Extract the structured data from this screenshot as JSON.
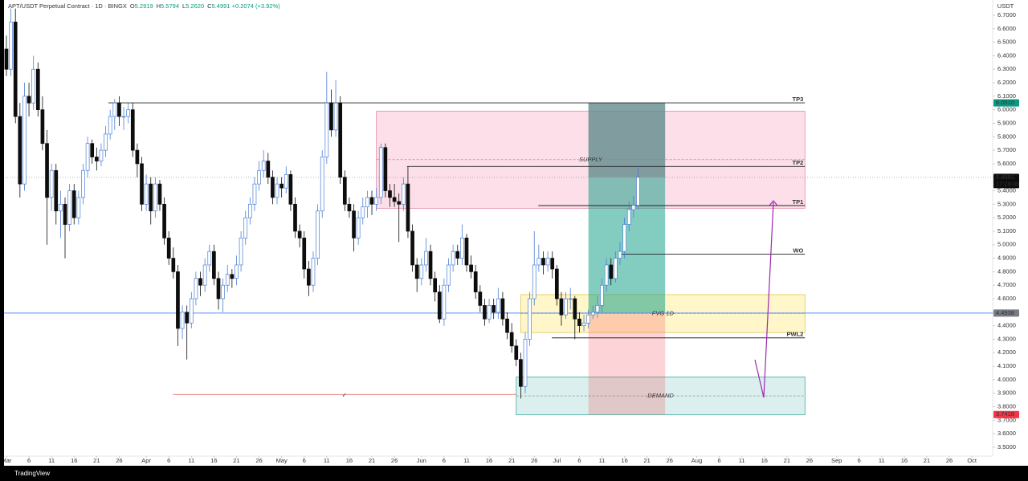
{
  "header": {
    "symbol": "APT/USDT Perpetual Contract · 1D · BINGX",
    "ohlc": [
      {
        "key": "O",
        "value": "5.2919"
      },
      {
        "key": "H",
        "value": "5.5794"
      },
      {
        "key": "L",
        "value": "5.2620"
      },
      {
        "key": "C",
        "value": "5.4991"
      }
    ],
    "change": "+0.2074 (+3.92%)"
  },
  "chart_data": {
    "type": "candlestick",
    "y_unit": "USDT",
    "up_color": "#4a7fd6",
    "down_color": "#0d0d0d",
    "candles": [
      [
        6.45,
        6.55,
        6.25,
        6.3
      ],
      [
        6.3,
        6.75,
        6.25,
        6.65
      ],
      [
        6.65,
        6.75,
        5.9,
        5.95
      ],
      [
        5.95,
        6.05,
        5.35,
        5.45
      ],
      [
        5.45,
        6.2,
        5.4,
        6.1
      ],
      [
        6.1,
        6.2,
        5.95,
        6.05
      ],
      [
        6.05,
        6.4,
        6.0,
        6.3
      ],
      [
        6.3,
        6.35,
        5.95,
        6.0
      ],
      [
        6.0,
        6.1,
        5.7,
        5.75
      ],
      [
        5.75,
        5.85,
        5.0,
        5.35
      ],
      [
        5.35,
        5.6,
        5.25,
        5.55
      ],
      [
        5.55,
        5.6,
        5.15,
        5.25
      ],
      [
        5.25,
        5.4,
        5.05,
        5.3
      ],
      [
        5.3,
        5.35,
        4.9,
        5.15
      ],
      [
        5.15,
        5.45,
        5.1,
        5.4
      ],
      [
        5.4,
        5.45,
        5.15,
        5.2
      ],
      [
        5.2,
        5.4,
        5.15,
        5.35
      ],
      [
        5.35,
        5.6,
        5.3,
        5.55
      ],
      [
        5.55,
        5.8,
        5.5,
        5.75
      ],
      [
        5.75,
        5.78,
        5.6,
        5.65
      ],
      [
        5.65,
        5.72,
        5.55,
        5.62
      ],
      [
        5.62,
        5.75,
        5.58,
        5.7
      ],
      [
        5.7,
        5.88,
        5.65,
        5.82
      ],
      [
        5.82,
        6.0,
        5.78,
        5.95
      ],
      [
        5.95,
        6.08,
        5.85,
        6.05
      ],
      [
        6.05,
        6.1,
        5.88,
        5.95
      ],
      [
        5.95,
        6.02,
        5.85,
        5.95
      ],
      [
        5.95,
        6.05,
        5.9,
        6.0
      ],
      [
        6.0,
        6.05,
        5.65,
        5.7
      ],
      [
        5.7,
        5.75,
        5.5,
        5.6
      ],
      [
        5.6,
        5.65,
        5.25,
        5.3
      ],
      [
        5.3,
        5.52,
        5.25,
        5.45
      ],
      [
        5.45,
        5.5,
        5.15,
        5.25
      ],
      [
        5.25,
        5.5,
        5.2,
        5.45
      ],
      [
        5.45,
        5.48,
        5.25,
        5.3
      ],
      [
        5.3,
        5.35,
        5.0,
        5.05
      ],
      [
        5.05,
        5.1,
        4.85,
        4.9
      ],
      [
        4.9,
        4.98,
        4.75,
        4.8
      ],
      [
        4.8,
        4.85,
        4.25,
        4.38
      ],
      [
        4.38,
        4.55,
        4.3,
        4.5
      ],
      [
        4.5,
        4.55,
        4.15,
        4.42
      ],
      [
        4.42,
        4.65,
        4.38,
        4.6
      ],
      [
        4.6,
        4.8,
        4.55,
        4.75
      ],
      [
        4.75,
        4.8,
        4.62,
        4.7
      ],
      [
        4.7,
        4.9,
        4.65,
        4.85
      ],
      [
        4.85,
        5.0,
        4.8,
        4.95
      ],
      [
        4.95,
        5.0,
        4.7,
        4.75
      ],
      [
        4.75,
        4.8,
        4.52,
        4.6
      ],
      [
        4.6,
        4.75,
        4.5,
        4.7
      ],
      [
        4.7,
        4.85,
        4.65,
        4.78
      ],
      [
        4.78,
        4.82,
        4.68,
        4.75
      ],
      [
        4.75,
        4.92,
        4.7,
        4.85
      ],
      [
        4.85,
        5.1,
        4.8,
        5.05
      ],
      [
        5.05,
        5.25,
        5.0,
        5.2
      ],
      [
        5.2,
        5.35,
        5.15,
        5.3
      ],
      [
        5.3,
        5.5,
        5.25,
        5.45
      ],
      [
        5.45,
        5.62,
        5.4,
        5.55
      ],
      [
        5.55,
        5.7,
        5.5,
        5.62
      ],
      [
        5.62,
        5.68,
        5.45,
        5.5
      ],
      [
        5.5,
        5.55,
        5.3,
        5.35
      ],
      [
        5.35,
        5.5,
        5.3,
        5.45
      ],
      [
        5.45,
        5.5,
        5.35,
        5.42
      ],
      [
        5.42,
        5.58,
        5.38,
        5.52
      ],
      [
        5.52,
        5.55,
        5.25,
        5.3
      ],
      [
        5.3,
        5.35,
        5.05,
        5.1
      ],
      [
        5.1,
        5.15,
        4.98,
        5.05
      ],
      [
        5.05,
        5.1,
        4.75,
        4.82
      ],
      [
        4.82,
        4.88,
        4.62,
        4.7
      ],
      [
        4.7,
        4.95,
        4.65,
        4.9
      ],
      [
        4.9,
        5.3,
        4.85,
        5.25
      ],
      [
        5.25,
        5.7,
        5.2,
        5.65
      ],
      [
        5.65,
        6.28,
        5.6,
        6.05
      ],
      [
        6.05,
        6.15,
        5.8,
        5.85
      ],
      [
        5.85,
        6.22,
        5.8,
        6.05
      ],
      [
        6.05,
        6.1,
        5.45,
        5.5
      ],
      [
        5.5,
        5.55,
        5.25,
        5.3
      ],
      [
        5.3,
        5.35,
        5.2,
        5.25
      ],
      [
        5.25,
        5.3,
        4.95,
        5.05
      ],
      [
        5.05,
        5.25,
        5.0,
        5.2
      ],
      [
        5.2,
        5.35,
        5.15,
        5.28
      ],
      [
        5.28,
        5.4,
        5.2,
        5.35
      ],
      [
        5.35,
        5.4,
        5.22,
        5.3
      ],
      [
        5.3,
        5.42,
        5.25,
        5.35
      ],
      [
        5.35,
        5.75,
        5.3,
        5.72
      ],
      [
        5.72,
        5.75,
        5.35,
        5.4
      ],
      [
        5.4,
        5.45,
        5.28,
        5.35
      ],
      [
        5.35,
        5.45,
        5.28,
        5.32
      ],
      [
        5.32,
        5.38,
        5.02,
        5.3
      ],
      [
        5.3,
        5.5,
        5.25,
        5.45
      ],
      [
        5.45,
        5.58,
        5.05,
        5.1
      ],
      [
        5.1,
        5.15,
        4.8,
        4.85
      ],
      [
        4.85,
        4.9,
        4.65,
        4.75
      ],
      [
        4.75,
        4.9,
        4.7,
        4.85
      ],
      [
        4.85,
        5.05,
        4.8,
        4.95
      ],
      [
        4.95,
        5.0,
        4.7,
        4.75
      ],
      [
        4.75,
        4.8,
        4.58,
        4.65
      ],
      [
        4.65,
        4.7,
        4.42,
        4.45
      ],
      [
        4.45,
        4.75,
        4.4,
        4.7
      ],
      [
        4.7,
        4.9,
        4.65,
        4.85
      ],
      [
        4.85,
        5.0,
        4.8,
        4.95
      ],
      [
        4.95,
        5.0,
        4.85,
        4.9
      ],
      [
        4.9,
        5.15,
        4.85,
        5.05
      ],
      [
        5.05,
        5.08,
        4.8,
        4.85
      ],
      [
        4.85,
        4.92,
        4.75,
        4.8
      ],
      [
        4.8,
        4.85,
        4.6,
        4.65
      ],
      [
        4.65,
        4.7,
        4.5,
        4.55
      ],
      [
        4.55,
        4.6,
        4.4,
        4.45
      ],
      [
        4.45,
        4.6,
        4.42,
        4.55
      ],
      [
        4.55,
        4.6,
        4.45,
        4.5
      ],
      [
        4.5,
        4.68,
        4.45,
        4.6
      ],
      [
        4.6,
        4.65,
        4.4,
        4.45
      ],
      [
        4.45,
        4.5,
        4.3,
        4.35
      ],
      [
        4.35,
        4.42,
        4.2,
        4.25
      ],
      [
        4.25,
        4.3,
        4.1,
        4.15
      ],
      [
        4.15,
        4.2,
        3.86,
        3.95
      ],
      [
        3.95,
        4.35,
        3.9,
        4.3
      ],
      [
        4.3,
        4.65,
        4.25,
        4.6
      ],
      [
        4.6,
        5.1,
        4.55,
        4.85
      ],
      [
        4.85,
        5.0,
        4.8,
        4.9
      ],
      [
        4.9,
        4.95,
        4.78,
        4.85
      ],
      [
        4.85,
        4.95,
        4.8,
        4.9
      ],
      [
        4.9,
        4.95,
        4.75,
        4.82
      ],
      [
        4.82,
        4.85,
        4.55,
        4.6
      ],
      [
        4.6,
        4.65,
        4.4,
        4.48
      ],
      [
        4.48,
        4.65,
        4.45,
        4.6
      ],
      [
        4.6,
        4.68,
        4.52,
        4.6
      ],
      [
        4.6,
        4.62,
        4.3,
        4.45
      ],
      [
        4.45,
        4.5,
        4.35,
        4.4
      ],
      [
        4.4,
        4.48,
        4.36,
        4.42
      ],
      [
        4.42,
        4.52,
        4.38,
        4.48
      ],
      [
        4.48,
        4.55,
        4.45,
        4.5
      ],
      [
        4.5,
        4.62,
        4.46,
        4.55
      ],
      [
        4.55,
        4.75,
        4.5,
        4.7
      ],
      [
        4.7,
        4.9,
        4.65,
        4.85
      ],
      [
        4.85,
        4.9,
        4.7,
        4.75
      ],
      [
        4.75,
        4.95,
        4.72,
        4.9
      ],
      [
        4.9,
        5.02,
        4.85,
        4.95
      ],
      [
        4.95,
        5.2,
        4.9,
        5.15
      ],
      [
        5.15,
        5.32,
        5.1,
        5.26
      ],
      [
        5.26,
        5.36,
        5.2,
        5.2919
      ],
      [
        5.2919,
        5.5794,
        5.262,
        5.4991
      ]
    ],
    "xlim": [
      -1.42,
      218.6
    ],
    "xticks": [
      {
        "value": 0,
        "label": "Mar"
      },
      {
        "value": 5,
        "label": "6"
      },
      {
        "value": 10,
        "label": "11"
      },
      {
        "value": 15,
        "label": "16"
      },
      {
        "value": 20,
        "label": "21"
      },
      {
        "value": 25,
        "label": "26"
      },
      {
        "value": 31,
        "label": "Apr"
      },
      {
        "value": 36,
        "label": "6"
      },
      {
        "value": 41,
        "label": "11"
      },
      {
        "value": 46,
        "label": "16"
      },
      {
        "value": 51,
        "label": "21"
      },
      {
        "value": 56,
        "label": "26"
      },
      {
        "value": 61,
        "label": "May"
      },
      {
        "value": 66,
        "label": "6"
      },
      {
        "value": 71,
        "label": "11"
      },
      {
        "value": 76,
        "label": "16"
      },
      {
        "value": 81,
        "label": "21"
      },
      {
        "value": 86,
        "label": "26"
      },
      {
        "value": 92,
        "label": "Jun"
      },
      {
        "value": 97,
        "label": "6"
      },
      {
        "value": 102,
        "label": "11"
      },
      {
        "value": 107,
        "label": "16"
      },
      {
        "value": 112,
        "label": "21"
      },
      {
        "value": 117,
        "label": "26"
      },
      {
        "value": 122,
        "label": "Jul"
      },
      {
        "value": 127,
        "label": "6"
      },
      {
        "value": 132,
        "label": "11"
      },
      {
        "value": 137,
        "label": "16"
      },
      {
        "value": 142,
        "label": "21"
      },
      {
        "value": 147,
        "label": "26"
      },
      {
        "value": 153,
        "label": "Aug"
      },
      {
        "value": 158,
        "label": "6"
      },
      {
        "value": 163,
        "label": "11"
      },
      {
        "value": 168,
        "label": "16"
      },
      {
        "value": 173,
        "label": "21"
      },
      {
        "value": 178,
        "label": "26"
      },
      {
        "value": 184,
        "label": "Sep"
      },
      {
        "value": 189,
        "label": "6"
      },
      {
        "value": 194,
        "label": "11"
      },
      {
        "value": 199,
        "label": "16"
      },
      {
        "value": 204,
        "label": "21"
      },
      {
        "value": 209,
        "label": "26"
      },
      {
        "value": 214,
        "label": "Oct"
      }
    ],
    "ylim": [
      3.434,
      6.813
    ],
    "yticks": [
      {
        "value": 6.7,
        "label": "6.7000"
      },
      {
        "value": 6.6,
        "label": "6.6000"
      },
      {
        "value": 6.5,
        "label": "6.5000"
      },
      {
        "value": 6.4,
        "label": "6.4000"
      },
      {
        "value": 6.3,
        "label": "6.3000"
      },
      {
        "value": 6.2,
        "label": "6.2000"
      },
      {
        "value": 6.1,
        "label": "6.1000"
      },
      {
        "value": 6,
        "label": "6.0000"
      },
      {
        "value": 5.9,
        "label": "5.9000"
      },
      {
        "value": 5.8,
        "label": "5.8000"
      },
      {
        "value": 5.7,
        "label": "5.7000"
      },
      {
        "value": 5.6,
        "label": "5.6000"
      },
      {
        "value": 5.5,
        "label": "5.5000"
      },
      {
        "value": 5.4,
        "label": "5.4000"
      },
      {
        "value": 5.3,
        "label": "5.3000"
      },
      {
        "value": 5.2,
        "label": "5.2000"
      },
      {
        "value": 5.1,
        "label": "5.1000"
      },
      {
        "value": 5,
        "label": "5.0000"
      },
      {
        "value": 4.9,
        "label": "4.9000"
      },
      {
        "value": 4.8,
        "label": "4.8000"
      },
      {
        "value": 4.7,
        "label": "4.7000"
      },
      {
        "value": 4.6,
        "label": "4.6000"
      },
      {
        "value": 4.5,
        "label": "4.5000"
      },
      {
        "value": 4.4,
        "label": "4.4000"
      },
      {
        "value": 4.3,
        "label": "4.3000"
      },
      {
        "value": 4.2,
        "label": "4.2000"
      },
      {
        "value": 4.1,
        "label": "4.1000"
      },
      {
        "value": 4,
        "label": "4.0000"
      },
      {
        "value": 3.9,
        "label": "3.9000"
      },
      {
        "value": 3.8,
        "label": "3.8000"
      },
      {
        "value": 3.7,
        "label": "3.7000"
      },
      {
        "value": 3.6,
        "label": "3.6000"
      },
      {
        "value": 3.5,
        "label": "3.5000"
      }
    ],
    "zones": [
      {
        "label": "SUPPLY",
        "top": 5.99,
        "bottom": 5.27,
        "mid": 5.63,
        "from": 82,
        "to": 177,
        "fill": "rgba(242,54,120,0.16)",
        "stroke": "#e48aa8"
      },
      {
        "label": "FVG 1D",
        "top": 4.63,
        "bottom": 4.35,
        "mid": 4.49,
        "from": 114,
        "to": 177,
        "fill": "rgba(255,226,60,0.28)",
        "stroke": "#e2c64e"
      },
      {
        "label": "DEMAND",
        "top": 4.02,
        "bottom": 3.74,
        "mid": 3.88,
        "from": 113,
        "to": 177,
        "fill": "rgba(0,150,136,0.14)",
        "stroke": "#3fa99c"
      }
    ],
    "position": {
      "from": 129,
      "to": 146,
      "entry": 4.4938,
      "target": 6.051,
      "stop": 3.7418,
      "profit_color": "rgba(8,153,129,0.5)",
      "loss_color": "rgba(242,54,69,0.22)",
      "open_color": "rgba(130,130,140,0.55)"
    },
    "levels": [
      {
        "label": "TP3",
        "value": 6.051,
        "from": 22.6,
        "to": 177
      },
      {
        "label": "TP2",
        "value": 5.58,
        "from": 88.8,
        "to": 177
      },
      {
        "label": "TP1",
        "value": 5.29,
        "from": 117.9,
        "to": 177
      },
      {
        "label": "WO",
        "value": 4.93,
        "from": 135.7,
        "to": 177
      },
      {
        "label": "PWL2",
        "value": 4.31,
        "from": 120.9,
        "to": 177
      }
    ],
    "sweep": {
      "value": 3.89,
      "from": 36.9,
      "to": 112.9,
      "color": "#e06a6a",
      "mark": "✓"
    },
    "price_tags": [
      {
        "value": 6.051,
        "label": "6.0510",
        "color": "#089981"
      },
      {
        "value": 5.4991,
        "label": "5.4991",
        "countdown": "17:29:09",
        "color": "#0d0d0d",
        "line": "dotted",
        "line_color": "#9598a1"
      },
      {
        "value": 4.4938,
        "label": "4.4938",
        "color": "#787b86",
        "line": "solid",
        "line_color": "#5b8def"
      },
      {
        "value": 3.7418,
        "label": "3.7418",
        "color": "#f23645"
      }
    ]
  },
  "footer": {
    "brand": "TradingView"
  }
}
